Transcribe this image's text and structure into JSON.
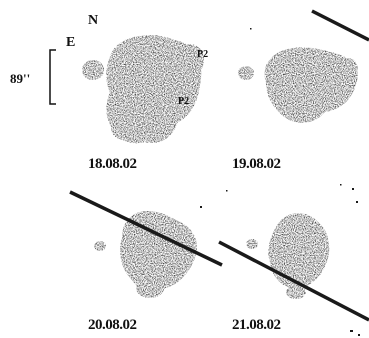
{
  "figure": {
    "compass": {
      "north": "N",
      "east": "E"
    },
    "scale_bar": {
      "label": "89''"
    },
    "panels": [
      {
        "date": "18.08.02",
        "feature_labels": [
          "P2",
          "P2"
        ]
      },
      {
        "date": "19.08.02"
      },
      {
        "date": "20.08.02"
      },
      {
        "date": "21.08.02"
      }
    ],
    "colors": {
      "ink": "#111111",
      "background": "#ffffff"
    }
  }
}
